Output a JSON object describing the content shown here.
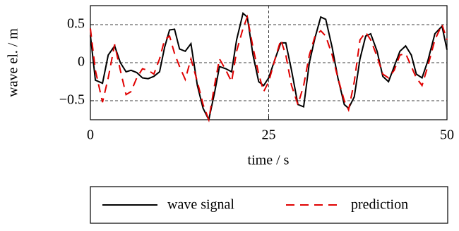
{
  "chart_data": {
    "type": "line",
    "x_label": "time / s",
    "y_label": "wave el. / m",
    "x": [
      0,
      0.7,
      1.7,
      2.5,
      3.4,
      4.2,
      5.0,
      5.7,
      6.5,
      7.3,
      8.1,
      8.9,
      9.7,
      10.4,
      11.1,
      11.8,
      12.5,
      13.3,
      14.1,
      15.0,
      15.8,
      16.6,
      17.4,
      18.1,
      19.0,
      19.8,
      20.5,
      21.4,
      22.0,
      22.8,
      23.6,
      24.3,
      25.0,
      25.9,
      26.7,
      27.4,
      28.2,
      29.1,
      29.9,
      30.7,
      31.5,
      32.3,
      33.0,
      33.9,
      34.7,
      35.6,
      36.2,
      37.0,
      37.8,
      38.6,
      39.3,
      40.2,
      41.0,
      41.8,
      42.6,
      43.4,
      44.2,
      45.0,
      45.7,
      46.5,
      47.3,
      48.3,
      49.3,
      50
    ],
    "series": [
      {
        "name": "wave signal",
        "color": "#000000",
        "style": "solid",
        "values": [
          0.36,
          -0.23,
          -0.27,
          0.1,
          0.22,
          0.0,
          -0.12,
          -0.1,
          -0.13,
          -0.2,
          -0.21,
          -0.18,
          -0.12,
          0.2,
          0.43,
          0.44,
          0.18,
          0.15,
          0.25,
          -0.3,
          -0.6,
          -0.75,
          -0.4,
          -0.05,
          -0.08,
          -0.12,
          0.3,
          0.65,
          0.6,
          0.1,
          -0.25,
          -0.3,
          -0.2,
          0.05,
          0.26,
          0.26,
          -0.1,
          -0.55,
          -0.58,
          0.0,
          0.33,
          0.6,
          0.57,
          0.2,
          -0.2,
          -0.55,
          -0.6,
          -0.45,
          0.05,
          0.35,
          0.38,
          0.15,
          -0.18,
          -0.25,
          -0.05,
          0.15,
          0.22,
          0.1,
          -0.15,
          -0.2,
          0.02,
          0.38,
          0.48,
          0.17
        ]
      },
      {
        "name": "prediction",
        "color": "#e00000",
        "style": "dashed",
        "values": [
          0.45,
          -0.1,
          -0.52,
          -0.2,
          0.24,
          -0.1,
          -0.42,
          -0.38,
          -0.2,
          -0.08,
          -0.1,
          -0.15,
          0.05,
          0.3,
          0.35,
          0.12,
          -0.05,
          -0.22,
          0.05,
          -0.25,
          -0.55,
          -0.75,
          -0.3,
          0.05,
          -0.1,
          -0.25,
          0.15,
          0.45,
          0.6,
          0.2,
          -0.15,
          -0.38,
          -0.25,
          0.05,
          0.3,
          0.1,
          -0.3,
          -0.55,
          -0.3,
          0.1,
          0.35,
          0.42,
          0.35,
          0.1,
          -0.2,
          -0.5,
          -0.62,
          -0.25,
          0.3,
          0.4,
          0.3,
          0.08,
          -0.15,
          -0.2,
          -0.1,
          0.1,
          0.12,
          -0.05,
          -0.2,
          -0.3,
          -0.05,
          0.3,
          0.5,
          0.3
        ]
      }
    ],
    "xlim": [
      0,
      50
    ],
    "xticks": [
      0,
      25,
      50
    ],
    "ylim": [
      -0.75,
      0.75
    ],
    "yticks": [
      0.5,
      0,
      {
        "value": -0.5,
        "label": "−0.5"
      }
    ],
    "grid": true,
    "legend": "bottom"
  }
}
